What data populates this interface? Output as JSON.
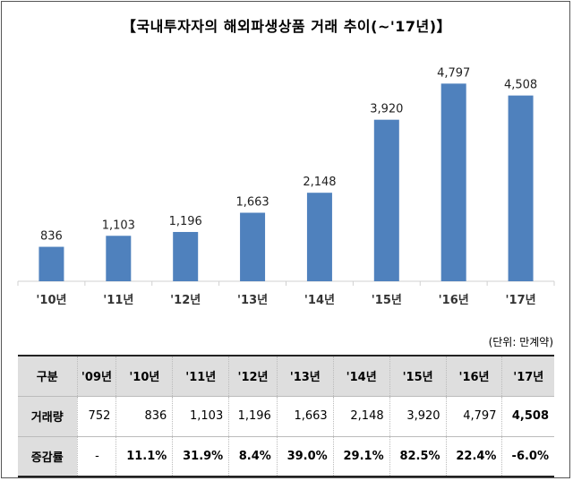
{
  "chart_data": {
    "type": "bar",
    "title": "【국내투자자의 해외파생상품 거래 추이(~'17년)】",
    "categories": [
      "'10년",
      "'11년",
      "'12년",
      "'13년",
      "'14년",
      "'15년",
      "'16년",
      "'17년"
    ],
    "values": [
      836,
      1103,
      1196,
      1663,
      2148,
      3920,
      4797,
      4508
    ],
    "value_labels": [
      "836",
      "1,103",
      "1,196",
      "1,663",
      "2,148",
      "3,920",
      "4,797",
      "4,508"
    ],
    "bar_color": "#4f81bd",
    "grid": false,
    "legend": "none",
    "ylim": [
      0,
      5000
    ]
  },
  "unit_label": "(단위: 만계약)",
  "table": {
    "header_label": "구분",
    "columns": [
      "'09년",
      "'10년",
      "'11년",
      "'12년",
      "'13년",
      "'14년",
      "'15년",
      "'16년",
      "'17년"
    ],
    "rows": [
      {
        "label": "거래량",
        "cells": [
          "752",
          "836",
          "1,103",
          "1,196",
          "1,663",
          "2,148",
          "3,920",
          "4,797",
          "4,508"
        ],
        "bold_cells": [
          8
        ]
      },
      {
        "label": "증감률",
        "cells": [
          "-",
          "11.1%",
          "31.9%",
          "8.4%",
          "39.0%",
          "29.1%",
          "82.5%",
          "22.4%",
          "-6.0%"
        ],
        "bold_cells": [
          1,
          2,
          3,
          4,
          5,
          6,
          7,
          8
        ]
      }
    ],
    "header_bg": "#dedede"
  }
}
